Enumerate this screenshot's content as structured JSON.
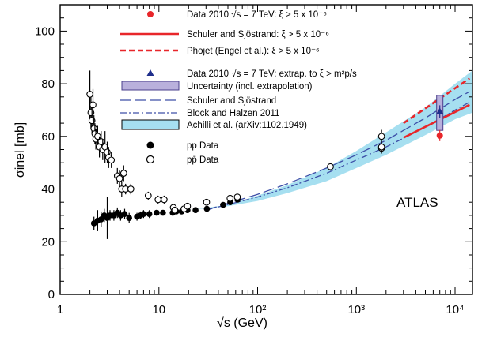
{
  "chart_data": {
    "type": "scatter",
    "xscale": "log",
    "xlim": [
      1,
      15000
    ],
    "ylim": [
      0,
      110
    ],
    "xlabel": "√s (GeV)",
    "ylabel": "σinel [mb]",
    "x_ticks": [
      {
        "value": 1,
        "label": "1"
      },
      {
        "value": 10,
        "label": "10"
      },
      {
        "value": 100,
        "label": "10²"
      },
      {
        "value": 1000,
        "label": "10³"
      },
      {
        "value": 10000,
        "label": "10⁴"
      }
    ],
    "y_ticks": [
      0,
      20,
      40,
      60,
      80,
      100
    ],
    "annotation": "ATLAS",
    "legend": [
      {
        "key": "atlas-data-2010",
        "text": "Data 2010 √s = 7 TeV: ξ > 5 x 10⁻⁶"
      },
      {
        "key": "schuler-sjostrand-ξ",
        "text": "Schuler and Sjöstrand: ξ > 5 x 10⁻⁶"
      },
      {
        "key": "phojet",
        "text": "Phojet (Engel et al.): ξ > 5 x 10⁻⁶"
      },
      {
        "key": "atlas-data-extrapolated",
        "text": "Data 2010 √s = 7 TeV: extrap. to  ξ > m²p/s"
      },
      {
        "key": "uncertainty",
        "text": "Uncertainty (incl. extrapolation)"
      },
      {
        "key": "schuler-sjostrand",
        "text": "Schuler and Sjöstrand"
      },
      {
        "key": "block-halzen",
        "text": "Block and Halzen 2011"
      },
      {
        "key": "achilli",
        "text": "Achilli et al. (arXiv:1102.1949)"
      },
      {
        "key": "pp-data",
        "text": "pp Data"
      },
      {
        "key": "ppbar-data",
        "text": "pp̄ Data"
      }
    ],
    "colors": {
      "atlas_red": "#e8262a",
      "atlas_blue": "#1f2f8c",
      "model_blue": "#3d4fa8",
      "band_cyan": "#a6dff0",
      "band_purple": "#b9b0dc",
      "marker_black": "#000000"
    },
    "series": [
      {
        "name": "pp Data",
        "marker": "filled-circle",
        "points": [
          {
            "x": 2.2,
            "y": 27,
            "err": 2.5
          },
          {
            "x": 2.4,
            "y": 28,
            "err": 4
          },
          {
            "x": 2.6,
            "y": 28.5,
            "err": 3
          },
          {
            "x": 2.8,
            "y": 30,
            "err": 2.5
          },
          {
            "x": 3.0,
            "y": 29,
            "err": 8
          },
          {
            "x": 3.2,
            "y": 30,
            "err": 2
          },
          {
            "x": 3.5,
            "y": 30,
            "err": 2
          },
          {
            "x": 3.8,
            "y": 31,
            "err": 2
          },
          {
            "x": 4.1,
            "y": 30,
            "err": 2
          },
          {
            "x": 4.5,
            "y": 30.5,
            "err": 2
          },
          {
            "x": 5.0,
            "y": 29,
            "err": 2
          },
          {
            "x": 6.0,
            "y": 29.5,
            "err": 1.5
          },
          {
            "x": 6.5,
            "y": 30,
            "err": 1.5
          },
          {
            "x": 7.0,
            "y": 30.5,
            "err": 1.5
          },
          {
            "x": 8.0,
            "y": 30.5,
            "err": 1.5
          },
          {
            "x": 9.5,
            "y": 31,
            "err": 1
          },
          {
            "x": 11,
            "y": 31,
            "err": 1
          },
          {
            "x": 13.8,
            "y": 31,
            "err": 1
          },
          {
            "x": 15,
            "y": 31.5,
            "err": 1
          },
          {
            "x": 17,
            "y": 31.5,
            "err": 1
          },
          {
            "x": 19.5,
            "y": 32,
            "err": 1
          },
          {
            "x": 23.5,
            "y": 32,
            "err": 1
          },
          {
            "x": 30.6,
            "y": 32.5,
            "err": 1
          },
          {
            "x": 44.7,
            "y": 34,
            "err": 1
          },
          {
            "x": 52.8,
            "y": 35,
            "err": 1
          },
          {
            "x": 62.7,
            "y": 36,
            "err": 1
          }
        ]
      },
      {
        "name": "pp̄ Data",
        "marker": "open-circle",
        "points": [
          {
            "x": 2.0,
            "y": 76,
            "err": 9
          },
          {
            "x": 2.05,
            "y": 69,
            "err": 6
          },
          {
            "x": 2.1,
            "y": 66,
            "err": 5
          },
          {
            "x": 2.15,
            "y": 72,
            "err": 6
          },
          {
            "x": 2.2,
            "y": 63,
            "err": 5
          },
          {
            "x": 2.25,
            "y": 61,
            "err": 4
          },
          {
            "x": 2.3,
            "y": 59,
            "err": 4
          },
          {
            "x": 2.4,
            "y": 60,
            "err": 4
          },
          {
            "x": 2.5,
            "y": 56,
            "err": 4
          },
          {
            "x": 2.6,
            "y": 58,
            "err": 4
          },
          {
            "x": 2.7,
            "y": 55,
            "err": 4
          },
          {
            "x": 2.85,
            "y": 56,
            "err": 6
          },
          {
            "x": 3.0,
            "y": 54,
            "err": 4
          },
          {
            "x": 3.1,
            "y": 52,
            "err": 4
          },
          {
            "x": 3.3,
            "y": 51,
            "err": 3
          },
          {
            "x": 3.8,
            "y": 45,
            "err": 3
          },
          {
            "x": 4.0,
            "y": 44,
            "err": 3
          },
          {
            "x": 4.2,
            "y": 40,
            "err": 3
          },
          {
            "x": 4.4,
            "y": 46,
            "err": 3
          },
          {
            "x": 4.6,
            "y": 40,
            "err": 2
          },
          {
            "x": 5.2,
            "y": 40,
            "err": 2
          },
          {
            "x": 7.8,
            "y": 37.5,
            "err": 1.5
          },
          {
            "x": 9.8,
            "y": 36,
            "err": 1.5
          },
          {
            "x": 11.3,
            "y": 36,
            "err": 1.5
          },
          {
            "x": 14.0,
            "y": 33,
            "err": 1
          },
          {
            "x": 14.5,
            "y": 32,
            "err": 1
          },
          {
            "x": 18,
            "y": 32.5,
            "err": 1
          },
          {
            "x": 19.5,
            "y": 33.5,
            "err": 1
          },
          {
            "x": 30.4,
            "y": 35,
            "err": 1
          },
          {
            "x": 52.6,
            "y": 36.5,
            "err": 1
          },
          {
            "x": 62.3,
            "y": 37,
            "err": 1
          },
          {
            "x": 546,
            "y": 48.5,
            "err": 1.5
          },
          {
            "x": 1800,
            "y": 60,
            "err": 2.5
          },
          {
            "x": 1800,
            "y": 55.5,
            "err": 2
          },
          {
            "x": 1800,
            "y": 56,
            "err": 1.5
          }
        ]
      },
      {
        "name": "Data 2010 √s = 7 TeV: ξ > 5 x 10⁻⁶",
        "marker": "filled-circle-red",
        "points": [
          {
            "x": 7000,
            "y": 60.3,
            "err": 2.1
          }
        ]
      },
      {
        "name": "Data 2010 √s = 7 TeV: extrap. to  ξ > m²p/s",
        "marker": "triangle-blue",
        "points": [
          {
            "x": 7000,
            "y": 69.4,
            "err": 2.4
          }
        ],
        "uncertainty_band": [
          62.3,
          75.6
        ]
      },
      {
        "name": "Schuler and Sjöstrand: ξ > 5 x 10⁻⁶",
        "style": "solid-red",
        "x": [
          3000,
          14000
        ],
        "y": [
          59.5,
          72
        ]
      },
      {
        "name": "Phojet (Engel et al.): ξ > 5 x 10⁻⁶",
        "style": "dashed-red",
        "x": [
          3000,
          14000
        ],
        "y": [
          65,
          82
        ]
      },
      {
        "name": "Schuler and Sjöstrand",
        "style": "long-dash-blue",
        "x": [
          30,
          100,
          200,
          500,
          1000,
          2000,
          5000,
          10000,
          14000
        ],
        "y": [
          32,
          38,
          42,
          48,
          53,
          58.5,
          67,
          74,
          77
        ]
      },
      {
        "name": "Block and Halzen 2011",
        "style": "dash-dot-blue",
        "x": [
          30,
          100,
          200,
          500,
          1000,
          2000,
          5000,
          10000,
          14000
        ],
        "y": [
          32,
          37,
          40.5,
          46,
          51,
          56,
          63.5,
          70,
          73
        ]
      },
      {
        "name": "Achilli et al. (arXiv:1102.1949)",
        "style": "cyan-band",
        "x": [
          20,
          50,
          100,
          200,
          500,
          1000,
          2000,
          5000,
          10000,
          15000
        ],
        "low": [
          32,
          33.5,
          35.5,
          38.5,
          43,
          48,
          53,
          60.5,
          66.5,
          69
        ],
        "high": [
          32,
          34,
          37.5,
          41.5,
          48,
          54.5,
          61.5,
          71,
          80,
          85
        ]
      }
    ]
  }
}
